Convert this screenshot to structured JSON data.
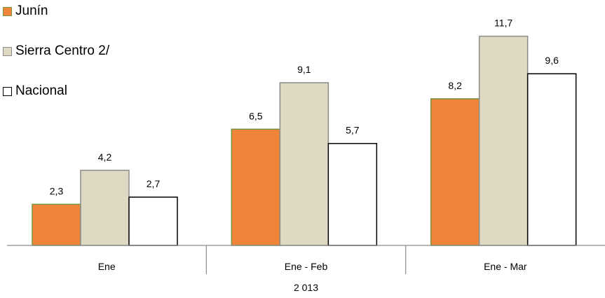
{
  "chart_data": {
    "type": "bar",
    "categories": [
      "Ene",
      "Ene - Feb",
      "Ene - Mar"
    ],
    "group_label": "2 013",
    "series": [
      {
        "name": "Junín",
        "values": [
          2.3,
          6.5,
          8.2
        ],
        "value_labels": [
          "2,3",
          "6,5",
          "8,2"
        ],
        "fill": "#f0853a",
        "stroke": "#77933c"
      },
      {
        "name": "Sierra Centro 2/",
        "values": [
          4.2,
          9.1,
          11.7
        ],
        "value_labels": [
          "4,2",
          "9,1",
          "11,7"
        ],
        "fill": "#ddd9c3",
        "stroke": "#8c8c8c"
      },
      {
        "name": "Nacional",
        "values": [
          2.7,
          5.7,
          9.6
        ],
        "value_labels": [
          "2,7",
          "5,7",
          "9,6"
        ],
        "fill": "#ffffff",
        "stroke": "#000000"
      }
    ],
    "ylim": [
      0,
      12
    ],
    "grid": false,
    "legend_position": "top-left"
  }
}
